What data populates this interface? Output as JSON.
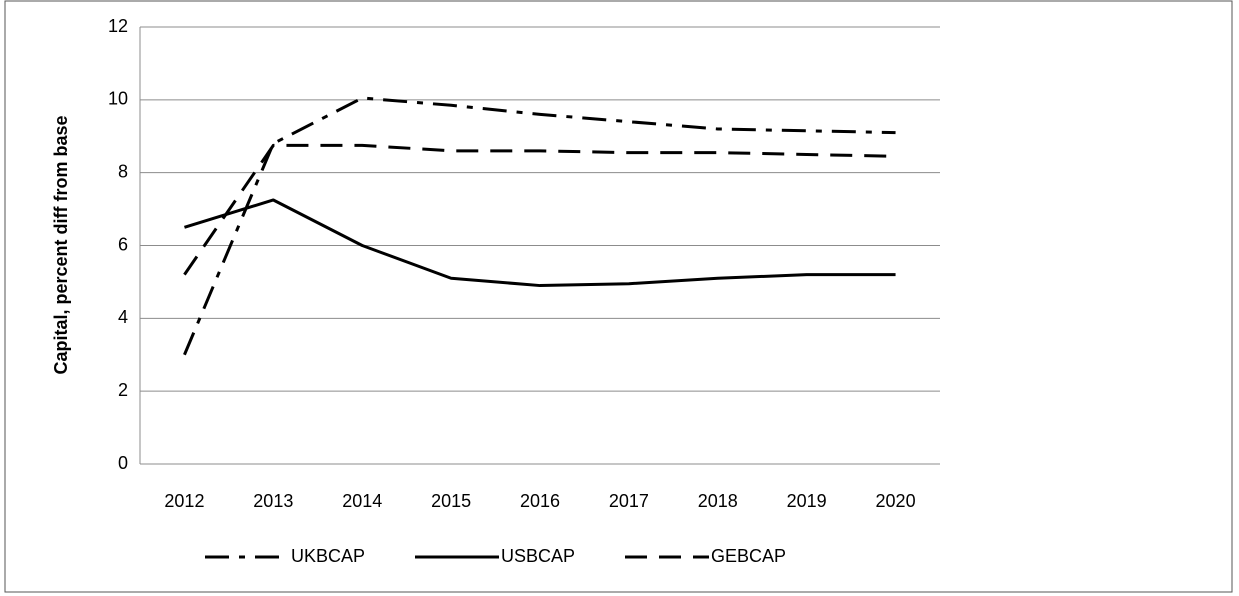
{
  "chart_data": {
    "type": "line",
    "y_label": "Capital, percent diff from base",
    "categories": [
      "2012",
      "2013",
      "2014",
      "2015",
      "2016",
      "2017",
      "2018",
      "2019",
      "2020"
    ],
    "series": [
      {
        "name": "UKBCAP",
        "color": "#000000",
        "dash": "dashdot",
        "values": [
          3.0,
          8.8,
          10.05,
          9.85,
          9.6,
          9.4,
          9.2,
          9.15,
          9.1
        ]
      },
      {
        "name": "USBCAP",
        "color": "#000000",
        "dash": "solid",
        "values": [
          6.5,
          7.25,
          6.0,
          5.1,
          4.9,
          4.95,
          5.1,
          5.2,
          5.2
        ]
      },
      {
        "name": "GEBCAP",
        "color": "#000000",
        "dash": "dashed",
        "values": [
          5.2,
          8.75,
          8.75,
          8.6,
          8.6,
          8.55,
          8.55,
          8.5,
          8.45
        ]
      }
    ],
    "ylim": [
      0,
      12
    ],
    "yticks": [
      0,
      2,
      4,
      6,
      8,
      10,
      12
    ],
    "grid": true,
    "legend": "bottom"
  }
}
